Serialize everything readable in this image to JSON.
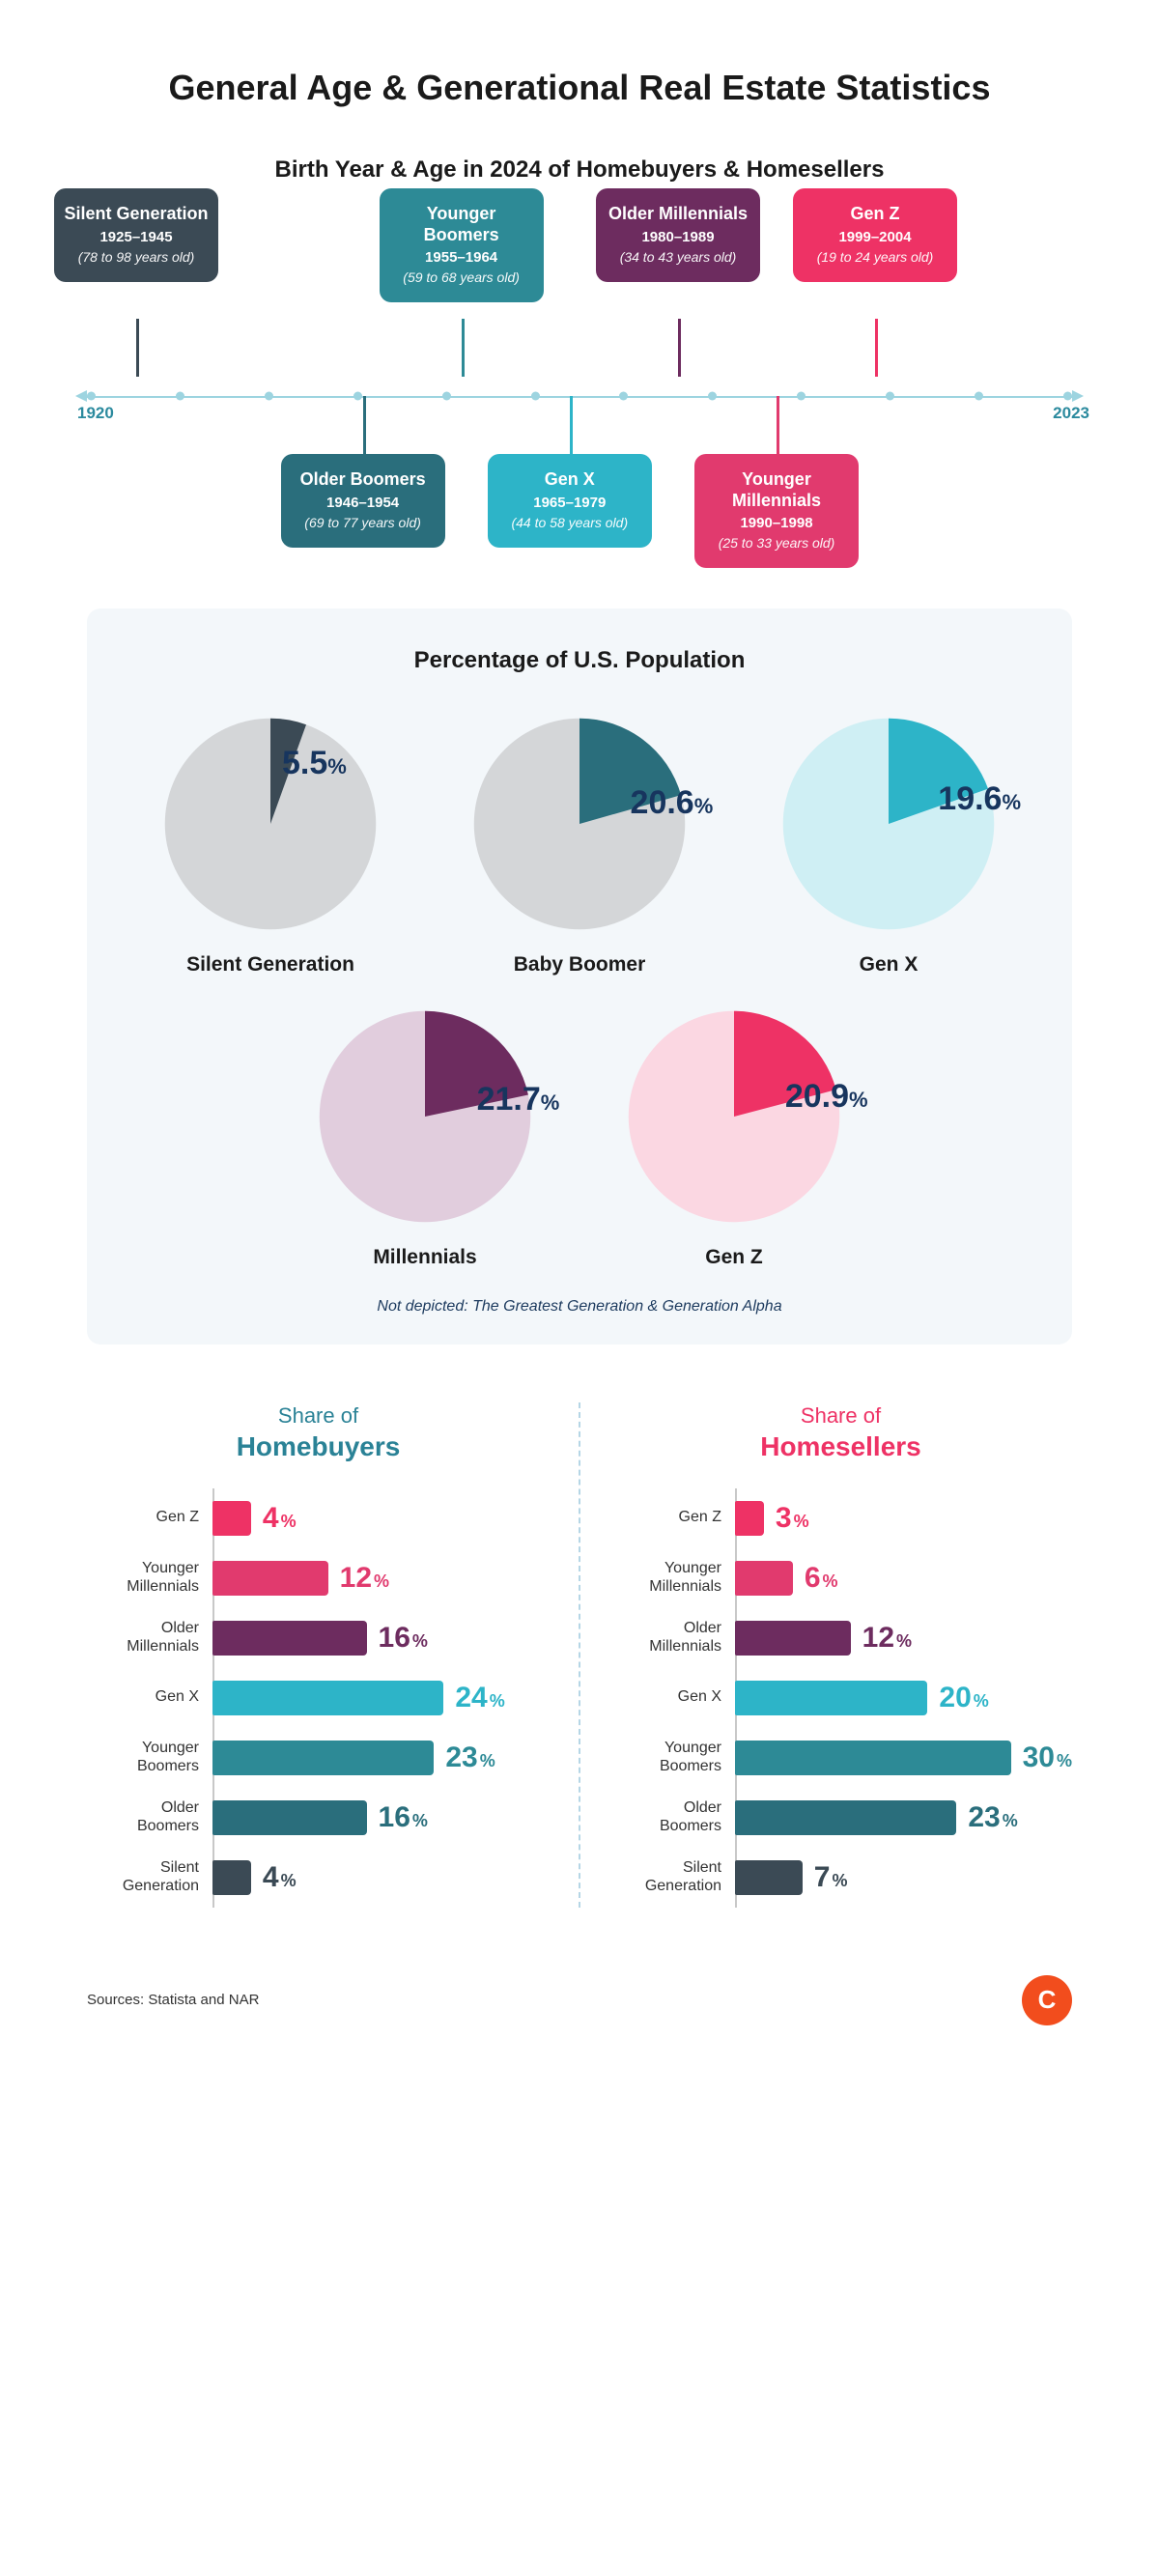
{
  "title": "General Age & Generational Real Estate Statistics",
  "timeline": {
    "subtitle": "Birth Year & Age in 2024 of Homebuyers & Homesellers",
    "axis": {
      "start_label": "1920",
      "end_label": "2023",
      "dot_count": 12,
      "line_color": "#9dd4e0"
    },
    "generations": [
      {
        "name": "Silent Generation",
        "years": "1925–1945",
        "age": "(78 to 98 years old)",
        "color": "#3b4a55",
        "pos_pct": 5,
        "row": "top"
      },
      {
        "name": "Older Boomers",
        "years": "1946–1954",
        "age": "(69 to 77 years old)",
        "color": "#2a6e7c",
        "pos_pct": 28,
        "row": "bottom"
      },
      {
        "name": "Younger Boomers",
        "years": "1955–1964",
        "age": "(59 to 68 years old)",
        "color": "#2d8a96",
        "pos_pct": 38,
        "row": "top"
      },
      {
        "name": "Gen X",
        "years": "1965–1979",
        "age": "(44 to 58 years old)",
        "color": "#2db4c8",
        "pos_pct": 49,
        "row": "bottom"
      },
      {
        "name": "Older Millennials",
        "years": "1980–1989",
        "age": "(34 to 43 years old)",
        "color": "#6d2c5f",
        "pos_pct": 60,
        "row": "top"
      },
      {
        "name": "Younger Millennials",
        "years": "1990–1998",
        "age": "(25 to 33 years old)",
        "color": "#e13a6e",
        "pos_pct": 70,
        "row": "bottom"
      },
      {
        "name": "Gen Z",
        "years": "1999–2004",
        "age": "(19 to 24 years old)",
        "color": "#ee3265",
        "pos_pct": 80,
        "row": "top"
      }
    ]
  },
  "population": {
    "title": "Percentage of U.S. Population",
    "note": "Not depicted: The Greatest Generation & Generation Alpha",
    "chart_bg": "#f3f7fa",
    "pies": [
      {
        "name": "Silent Generation",
        "value": 5.5,
        "slice_color": "#3b4a55",
        "rest_color": "#d4d6d8",
        "label_color": "#17355e"
      },
      {
        "name": "Baby Boomer",
        "value": 20.6,
        "slice_color": "#2a6e7c",
        "rest_color": "#d4d6d8",
        "label_color": "#17355e"
      },
      {
        "name": "Gen X",
        "value": 19.6,
        "slice_color": "#2db4c8",
        "rest_color": "#cfeff4",
        "label_color": "#17355e"
      },
      {
        "name": "Millennials",
        "value": 21.7,
        "slice_color": "#6d2c5f",
        "rest_color": "#e1cddd",
        "label_color": "#17355e"
      },
      {
        "name": "Gen Z",
        "value": 20.9,
        "slice_color": "#ee3265",
        "rest_color": "#fbd7e2",
        "label_color": "#17355e"
      }
    ]
  },
  "share_charts": {
    "max_value": 35,
    "buyers": {
      "title_line1": "Share of",
      "title_line2": "Homebuyers",
      "title_color": "#2a8296",
      "rows": [
        {
          "label": "Gen Z",
          "value": 4,
          "color": "#ee3265"
        },
        {
          "label": "Younger Millennials",
          "value": 12,
          "color": "#e13a6e"
        },
        {
          "label": "Older Millennials",
          "value": 16,
          "color": "#6d2c5f"
        },
        {
          "label": "Gen X",
          "value": 24,
          "color": "#2db4c8"
        },
        {
          "label": "Younger Boomers",
          "value": 23,
          "color": "#2d8a96"
        },
        {
          "label": "Older Boomers",
          "value": 16,
          "color": "#2a6e7c"
        },
        {
          "label": "Silent Generation",
          "value": 4,
          "color": "#3b4a55"
        }
      ]
    },
    "sellers": {
      "title_line1": "Share of",
      "title_line2": "Homesellers",
      "title_color": "#ee3265",
      "rows": [
        {
          "label": "Gen Z",
          "value": 3,
          "color": "#ee3265"
        },
        {
          "label": "Younger Millennials",
          "value": 6,
          "color": "#e13a6e"
        },
        {
          "label": "Older Millennials",
          "value": 12,
          "color": "#6d2c5f"
        },
        {
          "label": "Gen X",
          "value": 20,
          "color": "#2db4c8"
        },
        {
          "label": "Younger Boomers",
          "value": 30,
          "color": "#2d8a96"
        },
        {
          "label": "Older Boomers",
          "value": 23,
          "color": "#2a6e7c"
        },
        {
          "label": "Silent Generation",
          "value": 7,
          "color": "#3b4a55"
        }
      ]
    }
  },
  "footer": {
    "sources": "Sources: Statista and NAR",
    "logo_letter": "C",
    "logo_bg": "#f24d1d"
  }
}
